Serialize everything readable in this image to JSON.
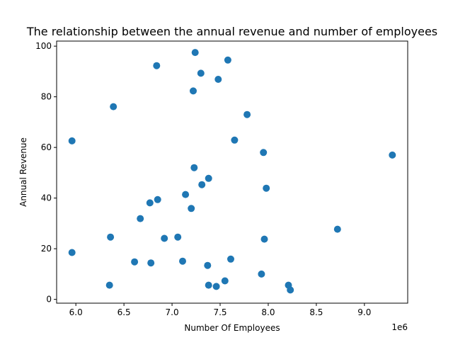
{
  "chart_data": {
    "type": "scatter",
    "title": "The relationship between the annual revenue and number of employees",
    "xlabel": "Number Of Employees",
    "ylabel": "Annual Revenue",
    "x_offset_label": "1e6",
    "xlim": [
      5.8,
      9.45
    ],
    "ylim": [
      -1.5,
      102
    ],
    "x_ticks": [
      6.0,
      6.5,
      7.0,
      7.5,
      8.0,
      8.5,
      9.0
    ],
    "x_tick_labels": [
      "6.0",
      "6.5",
      "7.0",
      "7.5",
      "8.0",
      "8.5",
      "9.0"
    ],
    "y_ticks": [
      0,
      20,
      40,
      60,
      80,
      100
    ],
    "y_tick_labels": [
      "0",
      "20",
      "40",
      "60",
      "80",
      "100"
    ],
    "grid": false,
    "marker_color": "#1f77b4",
    "points": [
      {
        "x": 7.24,
        "y": 97.5
      },
      {
        "x": 7.58,
        "y": 94.5
      },
      {
        "x": 6.84,
        "y": 92.3
      },
      {
        "x": 7.3,
        "y": 89.3
      },
      {
        "x": 7.48,
        "y": 86.9
      },
      {
        "x": 7.22,
        "y": 82.3
      },
      {
        "x": 6.39,
        "y": 76.1
      },
      {
        "x": 7.78,
        "y": 73.0
      },
      {
        "x": 5.96,
        "y": 62.6
      },
      {
        "x": 7.65,
        "y": 62.9
      },
      {
        "x": 7.95,
        "y": 58.0
      },
      {
        "x": 9.29,
        "y": 57.0
      },
      {
        "x": 7.23,
        "y": 52.0
      },
      {
        "x": 7.38,
        "y": 47.8
      },
      {
        "x": 7.31,
        "y": 45.3
      },
      {
        "x": 7.98,
        "y": 43.9
      },
      {
        "x": 7.14,
        "y": 41.4
      },
      {
        "x": 6.85,
        "y": 39.4
      },
      {
        "x": 6.77,
        "y": 38.1
      },
      {
        "x": 7.2,
        "y": 35.9
      },
      {
        "x": 6.67,
        "y": 31.9
      },
      {
        "x": 8.72,
        "y": 27.7
      },
      {
        "x": 6.36,
        "y": 24.6
      },
      {
        "x": 7.06,
        "y": 24.6
      },
      {
        "x": 6.92,
        "y": 24.1
      },
      {
        "x": 7.96,
        "y": 23.8
      },
      {
        "x": 5.96,
        "y": 18.5
      },
      {
        "x": 7.61,
        "y": 15.9
      },
      {
        "x": 7.11,
        "y": 15.1
      },
      {
        "x": 6.61,
        "y": 14.8
      },
      {
        "x": 6.78,
        "y": 14.4
      },
      {
        "x": 7.37,
        "y": 13.4
      },
      {
        "x": 7.93,
        "y": 10.0
      },
      {
        "x": 7.55,
        "y": 7.3
      },
      {
        "x": 6.35,
        "y": 5.6
      },
      {
        "x": 7.38,
        "y": 5.6
      },
      {
        "x": 7.46,
        "y": 5.1
      },
      {
        "x": 8.21,
        "y": 5.6
      },
      {
        "x": 8.23,
        "y": 3.7
      }
    ]
  }
}
